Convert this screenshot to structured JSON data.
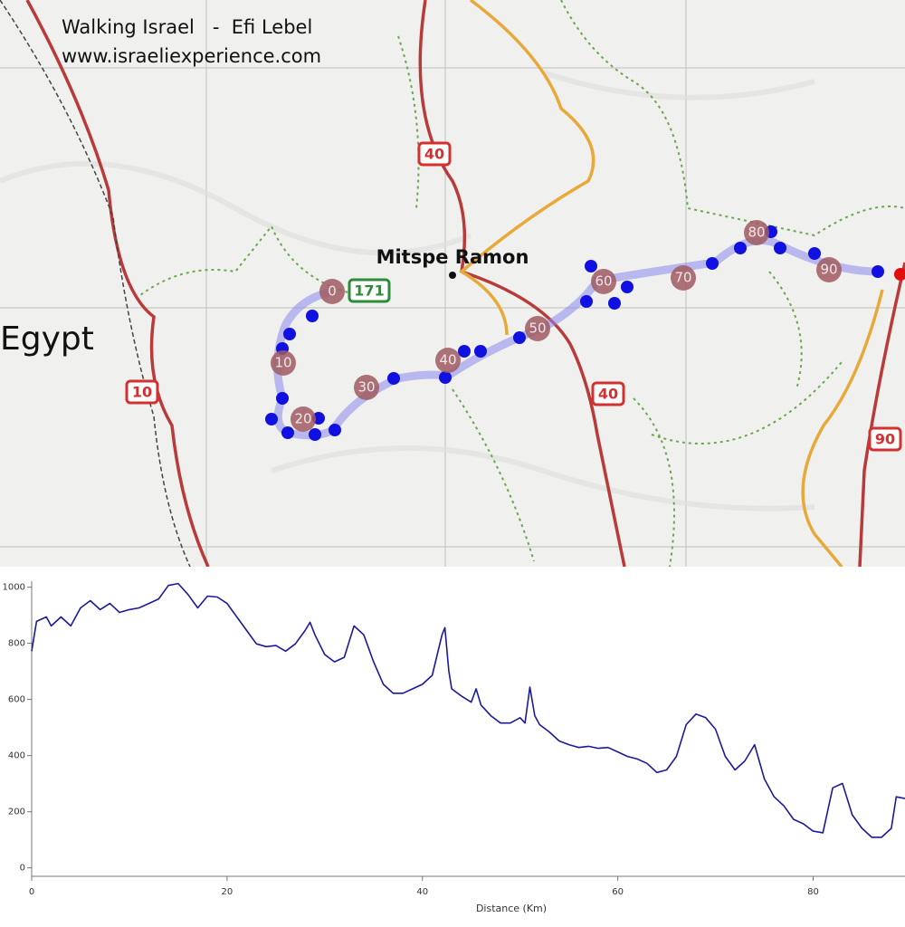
{
  "header": {
    "title": "Walking Israel   -  Efi Lebel",
    "url": "www.israeliexperience.com"
  },
  "map": {
    "town": "Mitspe Ramon",
    "country": "Egypt",
    "road_signs": [
      "40",
      "40",
      "10",
      "90",
      "171"
    ],
    "km_markers": [
      0,
      10,
      20,
      30,
      40,
      50,
      60,
      70,
      80,
      90
    ]
  },
  "chart_data": {
    "type": "line",
    "x_label": "Distance (Km)",
    "color": "#1a1a9c",
    "x": [
      0,
      0.5,
      1.5,
      2,
      3,
      4,
      5,
      6,
      7,
      8,
      9,
      10,
      11,
      12,
      13,
      14,
      15,
      16,
      17,
      18,
      19,
      20,
      21,
      22,
      23,
      24,
      25,
      26,
      27,
      28,
      28.5,
      29,
      30,
      31,
      32,
      33,
      34,
      35,
      36,
      37,
      38,
      39,
      40,
      41,
      42,
      42.3,
      42.7,
      43,
      44,
      45,
      45.5,
      46,
      47,
      48,
      49,
      50,
      50.5,
      51,
      51.5,
      52,
      53,
      54,
      55,
      56,
      57,
      58,
      59,
      60,
      61,
      62,
      63,
      64,
      65,
      66,
      67,
      68,
      69,
      70,
      71,
      72,
      73,
      74,
      75,
      76,
      77,
      78,
      79,
      80,
      81,
      82,
      83,
      84,
      85,
      86,
      87,
      88,
      88.5,
      89.4
    ],
    "values": [
      772,
      878,
      894,
      862,
      894,
      862,
      926,
      952,
      920,
      942,
      910,
      920,
      926,
      942,
      958,
      1006,
      1013,
      974,
      926,
      968,
      965,
      942,
      894,
      846,
      798,
      788,
      792,
      772,
      798,
      846,
      875,
      830,
      760,
      734,
      750,
      862,
      830,
      734,
      654,
      622,
      622,
      638,
      654,
      686,
      830,
      856,
      702,
      638,
      612,
      590,
      638,
      580,
      542,
      516,
      516,
      535,
      516,
      644,
      542,
      510,
      484,
      452,
      439,
      429,
      433,
      426,
      429,
      413,
      397,
      388,
      372,
      340,
      349,
      397,
      510,
      548,
      535,
      494,
      397,
      349,
      381,
      439,
      317,
      253,
      221,
      173,
      157,
      131,
      125,
      285,
      301,
      189,
      141,
      109,
      109,
      141,
      253,
      247
    ],
    "xlim": [
      0,
      89.4
    ],
    "ylim": [
      -30,
      1010
    ],
    "xticks": [
      0,
      20,
      40,
      60,
      80
    ],
    "yticks": [
      0,
      200,
      400,
      600,
      800,
      1000
    ]
  }
}
